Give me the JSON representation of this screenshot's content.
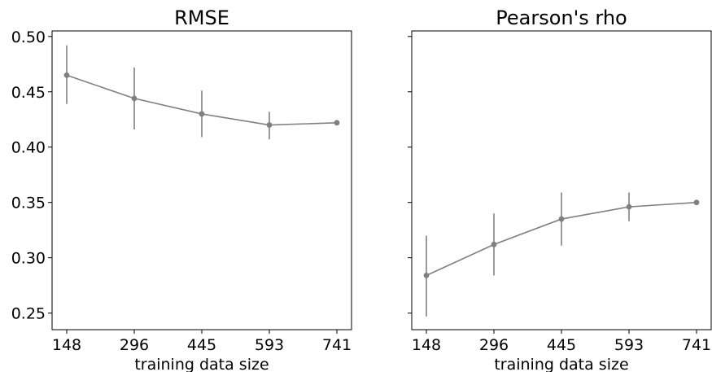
{
  "chart_data": [
    {
      "type": "line",
      "title": "RMSE",
      "xlabel": "training data size",
      "ylabel": "",
      "x": [
        148,
        296,
        445,
        593,
        741
      ],
      "x_tick_labels": [
        "148",
        "296",
        "445",
        "593",
        "741"
      ],
      "y": [
        0.465,
        0.444,
        0.43,
        0.42,
        0.422
      ],
      "error_low": [
        0.439,
        0.416,
        0.409,
        0.407,
        0.422
      ],
      "error_high": [
        0.492,
        0.472,
        0.451,
        0.432,
        0.422
      ],
      "ylim": [
        0.235,
        0.505
      ],
      "y_ticks": [
        0.25,
        0.3,
        0.35,
        0.4,
        0.45,
        0.5
      ],
      "y_tick_labels": [
        "0.25",
        "0.30",
        "0.35",
        "0.40",
        "0.45",
        "0.50"
      ],
      "show_y_tick_labels": true,
      "color": "#808080",
      "grid": false
    },
    {
      "type": "line",
      "title": "Pearson's rho",
      "xlabel": "training data size",
      "ylabel": "",
      "x": [
        148,
        296,
        445,
        593,
        741
      ],
      "x_tick_labels": [
        "148",
        "296",
        "445",
        "593",
        "741"
      ],
      "y": [
        0.284,
        0.312,
        0.335,
        0.346,
        0.35
      ],
      "error_low": [
        0.247,
        0.284,
        0.311,
        0.333,
        0.35
      ],
      "error_high": [
        0.32,
        0.34,
        0.359,
        0.359,
        0.35
      ],
      "ylim": [
        0.235,
        0.505
      ],
      "y_ticks": [
        0.25,
        0.3,
        0.35,
        0.4,
        0.45,
        0.5
      ],
      "y_tick_labels": [
        "0.25",
        "0.30",
        "0.35",
        "0.40",
        "0.45",
        "0.50"
      ],
      "show_y_tick_labels": false,
      "color": "#808080",
      "grid": false
    }
  ]
}
